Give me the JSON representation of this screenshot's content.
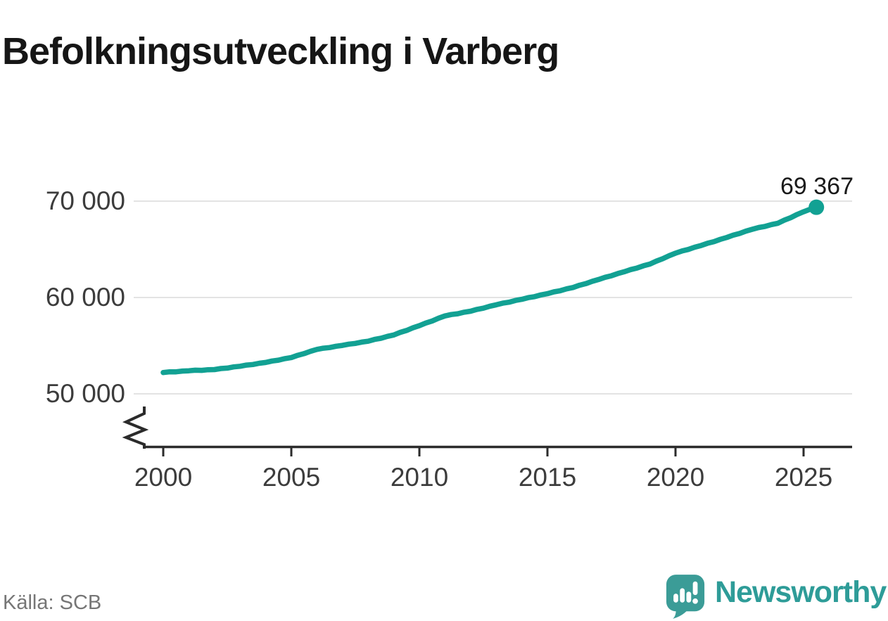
{
  "header": {
    "title": "Befolkningsutveckling i Varberg"
  },
  "source": {
    "label": "Källa: SCB"
  },
  "branding": {
    "wordmark": "Newsworthy",
    "logo_icon": "speech-bubble-with-bar-chart-and-exclamation",
    "brand_text_color": "#2E9C98",
    "icon_color": "#3B9C97"
  },
  "chart_data": {
    "type": "line",
    "title": "Befolkningsutveckling i Varberg",
    "xlabel": "",
    "ylabel": "",
    "grid": "horizontal",
    "axis_break_at_bottom": true,
    "line_color": "#12A193",
    "gridline_color": "#e3e3e3",
    "axis_color": "#2b2b2b",
    "x_start": 2000,
    "x_step": 0.25,
    "x_end": 2025.5,
    "xlim": [
      1999.2,
      2026.9
    ],
    "ylim": [
      45500,
      71500
    ],
    "xticks": [
      {
        "value": 2000,
        "label": "2000"
      },
      {
        "value": 2005,
        "label": "2005"
      },
      {
        "value": 2010,
        "label": "2010"
      },
      {
        "value": 2015,
        "label": "2015"
      },
      {
        "value": 2020,
        "label": "2020"
      },
      {
        "value": 2025,
        "label": "2025"
      }
    ],
    "yticks": [
      {
        "value": 70000,
        "label": "70 000"
      },
      {
        "value": 60000,
        "label": "60 000"
      },
      {
        "value": 50000,
        "label": "50 000"
      }
    ],
    "end_label": "69 367",
    "end_value": 69367,
    "series": [
      {
        "values": [
          52214,
          52284,
          52288,
          52368,
          52392,
          52449,
          52440,
          52507,
          52518,
          52628,
          52674,
          52794,
          52859,
          52983,
          53041,
          53175,
          53253,
          53406,
          53495,
          53658,
          53766,
          54002,
          54173,
          54419,
          54610,
          54740,
          54805,
          54945,
          55030,
          55162,
          55230,
          55372,
          55459,
          55647,
          55770,
          55967,
          56110,
          56377,
          56578,
          56855,
          57076,
          57353,
          57565,
          57852,
          58084,
          58232,
          58315,
          58473,
          58576,
          58767,
          58893,
          59094,
          59240,
          59408,
          59512,
          59690,
          59813,
          59984,
          60090,
          60270,
          60396,
          60581,
          60702,
          60897,
          61037,
          61270,
          61438,
          61680,
          61868,
          62094,
          62255,
          62492,
          62673,
          62897,
          63055,
          63289,
          63467,
          63776,
          64019,
          64338,
          64601,
          64825,
          64984,
          65218,
          65397,
          65629,
          65796,
          66038,
          66225,
          66465,
          66639,
          66889,
          67083,
          67264,
          67379,
          67570,
          67705,
          68029,
          68288,
          68621,
          68900,
          69150,
          69367
        ]
      }
    ]
  }
}
